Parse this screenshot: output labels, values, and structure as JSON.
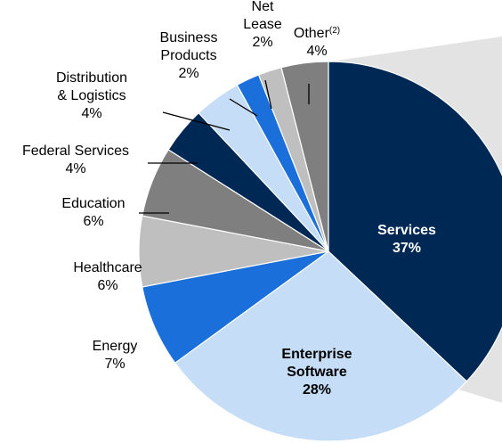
{
  "chart_data": {
    "type": "pie",
    "title": "",
    "slices": [
      {
        "name": "Services",
        "label": "Services",
        "pct": "37%",
        "value": 37,
        "color": "#002855"
      },
      {
        "name": "Enterprise Software",
        "label": "Enterprise\nSoftware",
        "pct": "28%",
        "value": 28,
        "color": "#C5DDF6"
      },
      {
        "name": "Energy",
        "label": "Energy",
        "pct": "7%",
        "value": 7,
        "color": "#1A6FDB"
      },
      {
        "name": "Healthcare",
        "label": "Healthcare",
        "pct": "6%",
        "value": 6,
        "color": "#BFBFBF"
      },
      {
        "name": "Education",
        "label": "Education",
        "pct": "6%",
        "value": 6,
        "color": "#7F7F7F"
      },
      {
        "name": "Federal Services",
        "label": "Federal Services",
        "pct": "4%",
        "value": 4,
        "color": "#002855"
      },
      {
        "name": "Distribution & Logistics",
        "label": "Distribution\n& Logistics",
        "pct": "4%",
        "value": 4,
        "color": "#C5DDF6"
      },
      {
        "name": "Business Products",
        "label": "Business\nProducts",
        "pct": "2%",
        "value": 2,
        "color": "#1A6FDB"
      },
      {
        "name": "Net Lease",
        "label": "Net\nLease",
        "pct": "2%",
        "value": 2,
        "color": "#BFBFBF"
      },
      {
        "name": "Other",
        "label": "Other",
        "sup": "(2)",
        "pct": "4%",
        "value": 4,
        "color": "#7F7F7F"
      }
    ],
    "callout_color": "#E3E3E3",
    "label_text_inside_dark": "#FFFFFF",
    "label_text_default": "#000000"
  }
}
